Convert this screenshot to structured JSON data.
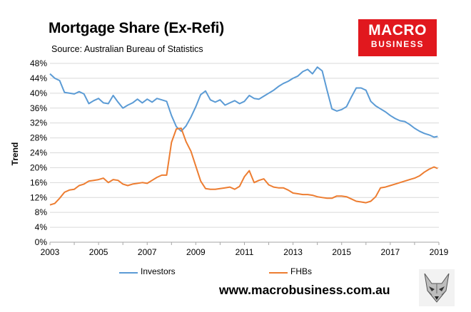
{
  "header": {
    "title": "Mortgage Share (Ex-Refi)",
    "subtitle": "Source: Australian Bureau of Statistics"
  },
  "logo": {
    "main": "MACRO",
    "sub": "BUSINESS",
    "color": "#e1181e"
  },
  "footer": {
    "url": "www.macrobusiness.com.au"
  },
  "chart_data": {
    "type": "line",
    "title": "Mortgage Share (Ex-Refi)",
    "ylabel": "Trend",
    "xlabel": "",
    "xlim": [
      2003,
      2019
    ],
    "ylim": [
      0,
      48
    ],
    "x_ticks": [
      "2003",
      "2005",
      "2007",
      "2009",
      "2011",
      "2013",
      "2015",
      "2017",
      "2019"
    ],
    "y_ticks": [
      "0%",
      "4%",
      "8%",
      "12%",
      "16%",
      "20%",
      "24%",
      "28%",
      "32%",
      "36%",
      "40%",
      "44%",
      "48%"
    ],
    "grid": true,
    "legend_position": "bottom",
    "series": [
      {
        "name": "Investors",
        "color": "#5b9bd5",
        "x": [
          2003.0,
          2003.2,
          2003.4,
          2003.6,
          2003.8,
          2004.0,
          2004.2,
          2004.4,
          2004.6,
          2004.8,
          2005.0,
          2005.2,
          2005.4,
          2005.6,
          2005.8,
          2006.0,
          2006.2,
          2006.4,
          2006.6,
          2006.8,
          2007.0,
          2007.2,
          2007.4,
          2007.6,
          2007.8,
          2008.0,
          2008.2,
          2008.4,
          2008.6,
          2008.8,
          2009.0,
          2009.2,
          2009.4,
          2009.6,
          2009.8,
          2010.0,
          2010.2,
          2010.4,
          2010.6,
          2010.8,
          2011.0,
          2011.2,
          2011.4,
          2011.6,
          2011.8,
          2012.0,
          2012.2,
          2012.4,
          2012.6,
          2012.8,
          2013.0,
          2013.2,
          2013.4,
          2013.6,
          2013.8,
          2014.0,
          2014.2,
          2014.4,
          2014.6,
          2014.8,
          2015.0,
          2015.2,
          2015.4,
          2015.6,
          2015.8,
          2016.0,
          2016.2,
          2016.4,
          2016.6,
          2016.8,
          2017.0,
          2017.2,
          2017.4,
          2017.6,
          2017.8,
          2018.0,
          2018.2,
          2018.4,
          2018.6,
          2018.8,
          2018.95
        ],
        "values": [
          45.2,
          44.0,
          43.4,
          40.2,
          40.0,
          39.8,
          40.4,
          39.8,
          37.2,
          38.0,
          38.6,
          37.4,
          37.2,
          39.4,
          37.6,
          36.0,
          36.8,
          37.4,
          38.4,
          37.4,
          38.4,
          37.6,
          38.6,
          38.2,
          37.8,
          34.0,
          31.0,
          29.8,
          31.2,
          33.6,
          36.4,
          39.6,
          40.6,
          38.2,
          37.6,
          38.2,
          36.8,
          37.4,
          38.0,
          37.2,
          37.8,
          39.4,
          38.6,
          38.4,
          39.2,
          40.0,
          40.8,
          41.8,
          42.6,
          43.2,
          44.0,
          44.6,
          45.8,
          46.4,
          45.2,
          47.0,
          46.0,
          40.8,
          35.8,
          35.2,
          35.6,
          36.4,
          39.0,
          41.4,
          41.4,
          40.8,
          37.8,
          36.6,
          35.8,
          35.0,
          34.0,
          33.2,
          32.6,
          32.4,
          31.6,
          30.6,
          29.8,
          29.2,
          28.8,
          28.2,
          28.4
        ]
      },
      {
        "name": "FHBs",
        "color": "#ed7d31",
        "x": [
          2003.0,
          2003.2,
          2003.4,
          2003.6,
          2003.8,
          2004.0,
          2004.2,
          2004.4,
          2004.6,
          2004.8,
          2005.0,
          2005.2,
          2005.4,
          2005.6,
          2005.8,
          2006.0,
          2006.2,
          2006.4,
          2006.6,
          2006.8,
          2007.0,
          2007.2,
          2007.4,
          2007.6,
          2007.8,
          2008.0,
          2008.2,
          2008.4,
          2008.6,
          2008.8,
          2009.0,
          2009.2,
          2009.4,
          2009.6,
          2009.8,
          2010.0,
          2010.2,
          2010.4,
          2010.6,
          2010.8,
          2011.0,
          2011.2,
          2011.4,
          2011.6,
          2011.8,
          2012.0,
          2012.2,
          2012.4,
          2012.6,
          2012.8,
          2013.0,
          2013.2,
          2013.4,
          2013.6,
          2013.8,
          2014.0,
          2014.2,
          2014.4,
          2014.6,
          2014.8,
          2015.0,
          2015.2,
          2015.4,
          2015.6,
          2015.8,
          2016.0,
          2016.2,
          2016.4,
          2016.6,
          2016.8,
          2017.0,
          2017.2,
          2017.4,
          2017.6,
          2017.8,
          2018.0,
          2018.2,
          2018.4,
          2018.6,
          2018.8,
          2018.95
        ],
        "values": [
          10.0,
          10.4,
          11.8,
          13.4,
          14.0,
          14.2,
          15.2,
          15.6,
          16.4,
          16.6,
          16.8,
          17.2,
          16.0,
          16.8,
          16.6,
          15.6,
          15.2,
          15.6,
          15.8,
          16.0,
          15.8,
          16.6,
          17.4,
          18.0,
          18.0,
          26.8,
          30.4,
          30.6,
          27.0,
          24.4,
          20.4,
          16.4,
          14.4,
          14.2,
          14.2,
          14.4,
          14.6,
          14.8,
          14.2,
          15.0,
          17.6,
          19.2,
          16.0,
          16.6,
          17.0,
          15.4,
          14.8,
          14.6,
          14.6,
          14.0,
          13.2,
          13.0,
          12.8,
          12.8,
          12.6,
          12.2,
          12.0,
          11.8,
          11.8,
          12.4,
          12.4,
          12.2,
          11.6,
          11.0,
          10.8,
          10.6,
          11.0,
          12.2,
          14.6,
          14.8,
          15.2,
          15.6,
          16.0,
          16.4,
          16.8,
          17.2,
          17.8,
          18.8,
          19.6,
          20.2,
          19.8
        ]
      }
    ]
  }
}
